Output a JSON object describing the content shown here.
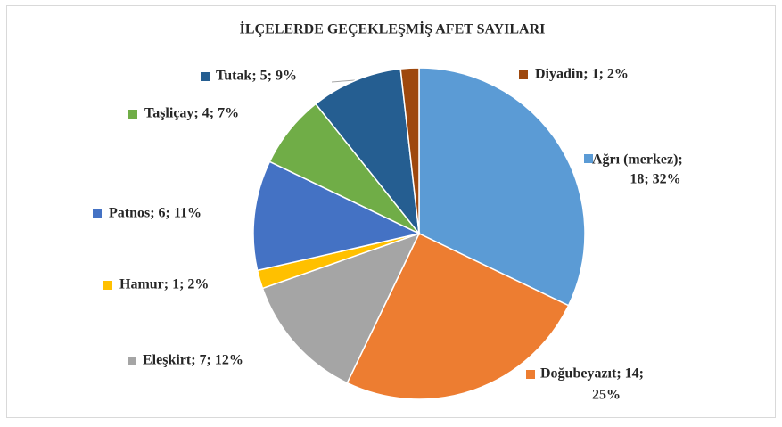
{
  "chart_data": {
    "type": "pie",
    "title": "İLÇELERDE GEÇEKLEŞMİŞ AFET SAYILARI",
    "values": [
      18,
      14,
      7,
      1,
      6,
      4,
      5,
      1
    ],
    "value_labels": [
      [
        "Ağrı (merkez);",
        "18; 32%"
      ],
      [
        "Doğubeyazıt; 14;",
        "25%"
      ],
      [
        "Eleşkirt; 7; 12%"
      ],
      [
        "Hamur; 1; 2%"
      ],
      [
        "Patnos; 6; 11%"
      ],
      [
        "Taşliçay; 4; 7%"
      ],
      [
        "Tutak; 5; 9%"
      ],
      [
        "Diyadin; 1; 2%"
      ]
    ],
    "colors": [
      "#5b9bd5",
      "#ed7d31",
      "#a5a5a5",
      "#ffc000",
      "#4472c4",
      "#70ad47",
      "#255e91",
      "#9e480e"
    ]
  }
}
